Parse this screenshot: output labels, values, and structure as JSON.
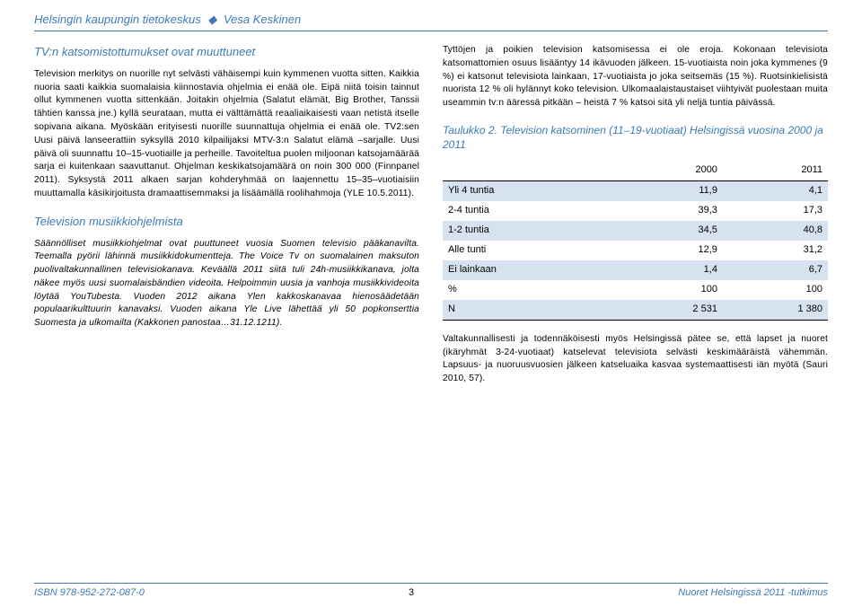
{
  "header": {
    "org": "Helsingin kaupungin tietokeskus",
    "author": "Vesa Keskinen",
    "bullet": "◆"
  },
  "left": {
    "title": "TV:n katsomistottumukset ovat muuttuneet",
    "p1": "Television merkitys on nuorille nyt selvästi vähäisempi kuin kymmenen vuotta sitten. Kaikkia nuoria saati kaikkia suomalaisia kiinnostavia ohjelmia ei enää ole. Eipä niitä toisin tainnut ollut kymmenen vuotta sittenkään. Joitakin ohjelmia (Salatut elämät, Big Brother, Tanssii tähtien kanssa jne.) kyllä seurataan, mutta ei välttämättä reaaliaikaisesti vaan netistä itselle sopivana aikana. Myöskään erityisesti nuorille suunnattuja ohjelmia ei enää ole. TV2:sen Uusi päivä lanseerattiin syksyllä 2010 kilpailijaksi MTV-3:n Salatut elämä –sarjalle. Uusi päivä oli suunnattu 10–15-vuotiaille ja perheille. Tavoiteltua puolen miljoonan katsojamäärää sarja ei kuitenkaan saavuttanut. Ohjelman keskikatsojamäärä on noin 300 000 (Finnpanel 2011). Syksystä 2011 alkaen sarjan kohderyhmää on laajennettu 15–35–vuotiaisiin muuttamalla käsikirjoitusta dramaattisemmaksi ja lisäämällä roolihahmoja (YLE 10.5.2011).",
    "section": "Television musiikkiohjelmista",
    "p2": "Säännölliset musiikkiohjelmat ovat puuttuneet vuosia Suomen televisio pääkanavilta. Teemalla pyörii lähinnä musiikkidokumentteja. The Voice Tv on suomalainen maksuton puolivaltakunnallinen televisiokanava.  Keväällä 2011 siitä tuli 24h-musiikkikanava, jolta näkee myös uusi suomalaisbändien videoita. Helpoimmin uusia ja vanhoja musiikkivideoita löytää YouTubesta. Vuoden 2012 aikana Ylen kakkoskanavaa hienosäädetään populaarikulttuurin kanavaksi. Vuoden aikana Yle Live lähettää yli 50 popkonserttia Suomesta ja ulkomailta (Kakkonen panostaa…31.12.1211)."
  },
  "right": {
    "p1": "Tyttöjen ja poikien television katsomisessa ei ole eroja. Kokonaan televisiota katsomattomien osuus lisääntyy 14 ikävuoden jälkeen. 15-vuotiaista noin joka kymmenes (9 %) ei katsonut televisiota lainkaan, 17-vuotiaista jo joka seitsemäs (15 %). Ruotsinkielisistä nuorista 12 % oli hylännyt koko television. Ulkomaalaistaustaiset viihtyivät puolestaan muita useammin tv:n ääressä pitkään – heistä 7 % katsoi sitä yli neljä tuntia päivässä.",
    "caption": "Taulukko 2. Television katsominen (11–19-vuotiaat) Helsingissä vuosina 2000 ja 2011",
    "p2": "Valtakunnallisesti ja todennäköisesti myös Helsingissä pätee se, että lapset ja nuoret (ikäryhmät 3-24-vuotiaat) katselevat televisiota selvästi keskimääräistä vähemmän. Lapsuus- ja nuoruusvuosien jälkeen katseluaika kasvaa systemaattisesti iän myötä (Sauri 2010, 57)."
  },
  "table": {
    "cols": [
      "",
      "2000",
      "2011"
    ],
    "rows": [
      [
        "Yli 4 tuntia",
        "11,9",
        "4,1"
      ],
      [
        "2-4 tuntia",
        "39,3",
        "17,3"
      ],
      [
        "1-2 tuntia",
        "34,5",
        "40,8"
      ],
      [
        "Alle tunti",
        "12,9",
        "31,2"
      ],
      [
        "Ei lainkaan",
        "1,4",
        "6,7"
      ],
      [
        "%",
        "100",
        "100"
      ],
      [
        "N",
        "2 531",
        "1 380"
      ]
    ],
    "alt_bg": "#d6e2ef"
  },
  "footer": {
    "isbn": "ISBN 978-952-272-087-0",
    "page": "3",
    "study": "Nuoret Helsingissä 2011 -tutkimus"
  },
  "colors": {
    "accent": "#3b7ab5",
    "text": "#000000",
    "table_alt": "#d6e2ef"
  }
}
